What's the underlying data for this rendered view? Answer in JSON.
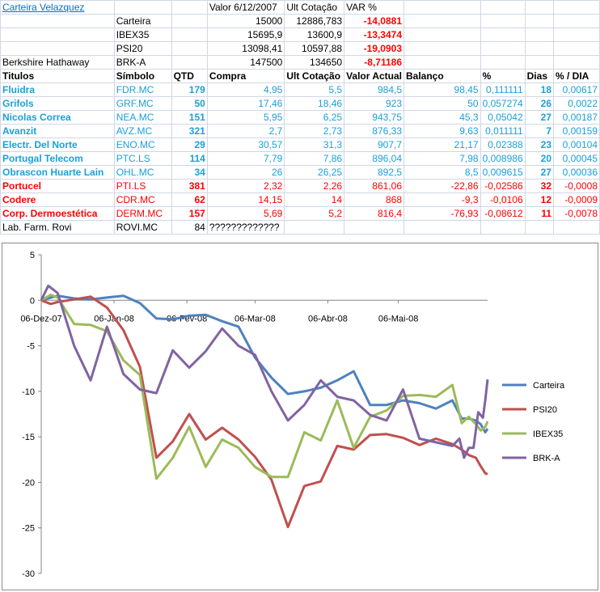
{
  "sheet": {
    "portfolio_title": "Carteira Velazquez",
    "header_row": {
      "c2": "Valor 6/12/2007",
      "c3": "Ult Cotação",
      "c4": "VAR %"
    },
    "summary": [
      {
        "label": "",
        "symbol": "Carteira",
        "v1": "15000",
        "v2": "12886,783",
        "var": "-14,0881"
      },
      {
        "label": "",
        "symbol": "IBEX35",
        "v1": "15695,9",
        "v2": "13600,9",
        "var": "-13,3474"
      },
      {
        "label": "",
        "symbol": "PSI20",
        "v1": "13098,41",
        "v2": "10597,88",
        "var": "-19,0903"
      },
      {
        "label": "Berkshire Hathaway",
        "symbol": "BRK-A",
        "v1": "147500",
        "v2": "134650",
        "var": "-8,71186"
      }
    ],
    "columns": [
      "Titulos",
      "Símbolo",
      "QTD",
      "Compra",
      "Ult Cotação",
      "Valor Actual",
      "Balanço",
      "%",
      "Dias",
      "% / DIA"
    ],
    "rows": [
      {
        "c": [
          "Fluidra",
          "FDR.MC",
          "179",
          "4,95",
          "5,5",
          "984,5",
          "98,45",
          "0,111111",
          "18",
          "0,00617"
        ],
        "tone": "blue"
      },
      {
        "c": [
          "Grifols",
          "GRF.MC",
          "50",
          "17,46",
          "18,46",
          "923",
          "50",
          "0,057274",
          "26",
          "0,0022"
        ],
        "tone": "blue"
      },
      {
        "c": [
          "Nicolas Correa",
          "NEA.MC",
          "151",
          "5,95",
          "6,25",
          "943,75",
          "45,3",
          "0,05042",
          "27",
          "0,00187"
        ],
        "tone": "blue"
      },
      {
        "c": [
          "Avanzit",
          "AVZ.MC",
          "321",
          "2,7",
          "2,73",
          "876,33",
          "9,63",
          "0,011111",
          "7",
          "0,00159"
        ],
        "tone": "blue"
      },
      {
        "c": [
          "Electr. Del Norte",
          "ENO.MC",
          "29",
          "30,57",
          "31,3",
          "907,7",
          "21,17",
          "0,02388",
          "23",
          "0,00104"
        ],
        "tone": "blue"
      },
      {
        "c": [
          "Portugal Telecom",
          "PTC.LS",
          "114",
          "7,79",
          "7,86",
          "896,04",
          "7,98",
          "0,008986",
          "20",
          "0,00045"
        ],
        "tone": "blue"
      },
      {
        "c": [
          "Obrascon Huarte Lain",
          "OHL.MC",
          "34",
          "26",
          "26,25",
          "892,5",
          "8,5",
          "0,009615",
          "27",
          "0,00036"
        ],
        "tone": "blue"
      },
      {
        "c": [
          "Portucel",
          "PTI.LS",
          "381",
          "2,32",
          "2,26",
          "861,06",
          "-22,86",
          "-0,02586",
          "32",
          "-0,0008"
        ],
        "tone": "red"
      },
      {
        "c": [
          "Codere",
          "CDR.MC",
          "62",
          "14,15",
          "14",
          "868",
          "-9,3",
          "-0,0106",
          "12",
          "-0,0009"
        ],
        "tone": "red"
      },
      {
        "c": [
          "Corp. Dermoestética",
          "DERM.MC",
          "157",
          "5,69",
          "5,2",
          "816,4",
          "-76,93",
          "-0,08612",
          "11",
          "-0,0078"
        ],
        "tone": "red"
      },
      {
        "c": [
          "Lab. Farm. Rovi",
          "ROVI.MC",
          "84",
          "?????????????",
          "",
          "",
          "",
          "",
          "",
          ""
        ],
        "tone": "plain"
      }
    ]
  },
  "chart_data": {
    "type": "line",
    "title": "",
    "xlabel": "",
    "ylabel": "",
    "ylim": [
      -30,
      5
    ],
    "yticks": [
      5,
      0,
      -5,
      -10,
      -15,
      -20,
      -25,
      -30
    ],
    "xlim": [
      "2007-12-06",
      "2008-06-13"
    ],
    "xtick_labels": [
      {
        "date": "2007-12-06",
        "label": "06-Dez-07"
      },
      {
        "date": "2008-01-06",
        "label": "06-Jan-08"
      },
      {
        "date": "2008-02-06",
        "label": "06-Fev-08"
      },
      {
        "date": "2008-03-06",
        "label": "06-Mar-08"
      },
      {
        "date": "2008-04-06",
        "label": "06-Abr-08"
      },
      {
        "date": "2008-05-06",
        "label": "06-Mai-08"
      }
    ],
    "legend": "right",
    "series": [
      {
        "name": "Carteira",
        "color": "#4f81bd",
        "points": [
          [
            "2007-12-06",
            0
          ],
          [
            "2007-12-13",
            0.5
          ],
          [
            "2007-12-20",
            0.2
          ],
          [
            "2007-12-27",
            0.1
          ],
          [
            "2008-01-03",
            0.3
          ],
          [
            "2008-01-10",
            0.5
          ],
          [
            "2008-01-17",
            -0.3
          ],
          [
            "2008-01-24",
            -2
          ],
          [
            "2008-01-31",
            -2.1
          ],
          [
            "2008-02-07",
            -1.7
          ],
          [
            "2008-02-14",
            -1.6
          ],
          [
            "2008-02-21",
            -2.3
          ],
          [
            "2008-02-28",
            -2.9
          ],
          [
            "2008-03-06",
            -6.3
          ],
          [
            "2008-03-13",
            -8.5
          ],
          [
            "2008-03-20",
            -10.3
          ],
          [
            "2008-03-27",
            -10
          ],
          [
            "2008-04-03",
            -9.6
          ],
          [
            "2008-04-10",
            -8.8
          ],
          [
            "2008-04-17",
            -7.8
          ],
          [
            "2008-04-24",
            -11.5
          ],
          [
            "2008-05-01",
            -11.5
          ],
          [
            "2008-05-08",
            -11
          ],
          [
            "2008-05-15",
            -11.3
          ],
          [
            "2008-05-22",
            -11.9
          ],
          [
            "2008-05-29",
            -11
          ],
          [
            "2008-06-02",
            -13
          ],
          [
            "2008-06-05",
            -13
          ],
          [
            "2008-06-08",
            -13.2
          ],
          [
            "2008-06-10",
            -13.6
          ],
          [
            "2008-06-12",
            -14.5
          ],
          [
            "2008-06-13",
            -14.1
          ]
        ]
      },
      {
        "name": "PSI20",
        "color": "#c0504d",
        "points": [
          [
            "2007-12-06",
            0
          ],
          [
            "2007-12-10",
            -0.4
          ],
          [
            "2007-12-13",
            -0.2
          ],
          [
            "2007-12-20",
            0.1
          ],
          [
            "2007-12-27",
            0.4
          ],
          [
            "2008-01-03",
            -0.8
          ],
          [
            "2008-01-10",
            -3.3
          ],
          [
            "2008-01-17",
            -7.3
          ],
          [
            "2008-01-24",
            -17.3
          ],
          [
            "2008-01-31",
            -15.5
          ],
          [
            "2008-02-07",
            -12.5
          ],
          [
            "2008-02-14",
            -15.3
          ],
          [
            "2008-02-21",
            -14
          ],
          [
            "2008-02-28",
            -15.3
          ],
          [
            "2008-03-06",
            -17.2
          ],
          [
            "2008-03-13",
            -19.7
          ],
          [
            "2008-03-20",
            -24.9
          ],
          [
            "2008-03-27",
            -20.4
          ],
          [
            "2008-04-03",
            -19.9
          ],
          [
            "2008-04-10",
            -16
          ],
          [
            "2008-04-17",
            -16.4
          ],
          [
            "2008-04-24",
            -14.8
          ],
          [
            "2008-05-01",
            -14.7
          ],
          [
            "2008-05-08",
            -15.1
          ],
          [
            "2008-05-15",
            -15.9
          ],
          [
            "2008-05-22",
            -15.2
          ],
          [
            "2008-05-29",
            -15.8
          ],
          [
            "2008-06-02",
            -16.4
          ],
          [
            "2008-06-05",
            -17
          ],
          [
            "2008-06-08",
            -17.3
          ],
          [
            "2008-06-10",
            -18.2
          ],
          [
            "2008-06-12",
            -19
          ],
          [
            "2008-06-13",
            -19.1
          ]
        ]
      },
      {
        "name": "IBEX35",
        "color": "#9bbb59",
        "points": [
          [
            "2007-12-06",
            0
          ],
          [
            "2007-12-10",
            0.6
          ],
          [
            "2007-12-13",
            0.3
          ],
          [
            "2007-12-20",
            -2.6
          ],
          [
            "2007-12-27",
            -2.7
          ],
          [
            "2008-01-03",
            -3.4
          ],
          [
            "2008-01-10",
            -6.6
          ],
          [
            "2008-01-17",
            -8.2
          ],
          [
            "2008-01-24",
            -19.6
          ],
          [
            "2008-01-31",
            -17.3
          ],
          [
            "2008-02-07",
            -13.9
          ],
          [
            "2008-02-14",
            -18.3
          ],
          [
            "2008-02-21",
            -15.3
          ],
          [
            "2008-02-28",
            -16.2
          ],
          [
            "2008-03-06",
            -18.3
          ],
          [
            "2008-03-13",
            -19.4
          ],
          [
            "2008-03-20",
            -19.4
          ],
          [
            "2008-03-27",
            -14.5
          ],
          [
            "2008-04-03",
            -15.4
          ],
          [
            "2008-04-10",
            -11
          ],
          [
            "2008-04-17",
            -16.2
          ],
          [
            "2008-04-24",
            -12.8
          ],
          [
            "2008-05-01",
            -12.1
          ],
          [
            "2008-05-08",
            -10.5
          ],
          [
            "2008-05-15",
            -10.4
          ],
          [
            "2008-05-22",
            -10.6
          ],
          [
            "2008-05-29",
            -9.3
          ],
          [
            "2008-06-02",
            -13.5
          ],
          [
            "2008-06-05",
            -12.8
          ],
          [
            "2008-06-08",
            -13.6
          ],
          [
            "2008-06-10",
            -14.3
          ],
          [
            "2008-06-12",
            -13.9
          ],
          [
            "2008-06-13",
            -13.3
          ]
        ]
      },
      {
        "name": "BRK-A",
        "color": "#8064a2",
        "points": [
          [
            "2007-12-06",
            0
          ],
          [
            "2007-12-09",
            1.6
          ],
          [
            "2007-12-13",
            0.8
          ],
          [
            "2007-12-20",
            -5
          ],
          [
            "2007-12-27",
            -8.8
          ],
          [
            "2008-01-03",
            -2.9
          ],
          [
            "2008-01-10",
            -8.1
          ],
          [
            "2008-01-17",
            -9.8
          ],
          [
            "2008-01-24",
            -10.2
          ],
          [
            "2008-01-31",
            -5.5
          ],
          [
            "2008-02-07",
            -7.4
          ],
          [
            "2008-02-14",
            -5.6
          ],
          [
            "2008-02-21",
            -3.1
          ],
          [
            "2008-02-28",
            -5
          ],
          [
            "2008-03-06",
            -6
          ],
          [
            "2008-03-13",
            -10
          ],
          [
            "2008-03-20",
            -13.2
          ],
          [
            "2008-03-27",
            -11.5
          ],
          [
            "2008-04-03",
            -8.8
          ],
          [
            "2008-04-10",
            -10.6
          ],
          [
            "2008-04-17",
            -11
          ],
          [
            "2008-04-24",
            -12.6
          ],
          [
            "2008-05-01",
            -13.2
          ],
          [
            "2008-05-08",
            -9.8
          ],
          [
            "2008-05-15",
            -15.2
          ],
          [
            "2008-05-22",
            -15.6
          ],
          [
            "2008-05-29",
            -16
          ],
          [
            "2008-06-01",
            -15.2
          ],
          [
            "2008-06-03",
            -17.3
          ],
          [
            "2008-06-05",
            -16.2
          ],
          [
            "2008-06-07",
            -16.2
          ],
          [
            "2008-06-09",
            -12.3
          ],
          [
            "2008-06-11",
            -12.9
          ],
          [
            "2008-06-12",
            -11
          ],
          [
            "2008-06-13",
            -8.7
          ]
        ]
      }
    ]
  }
}
